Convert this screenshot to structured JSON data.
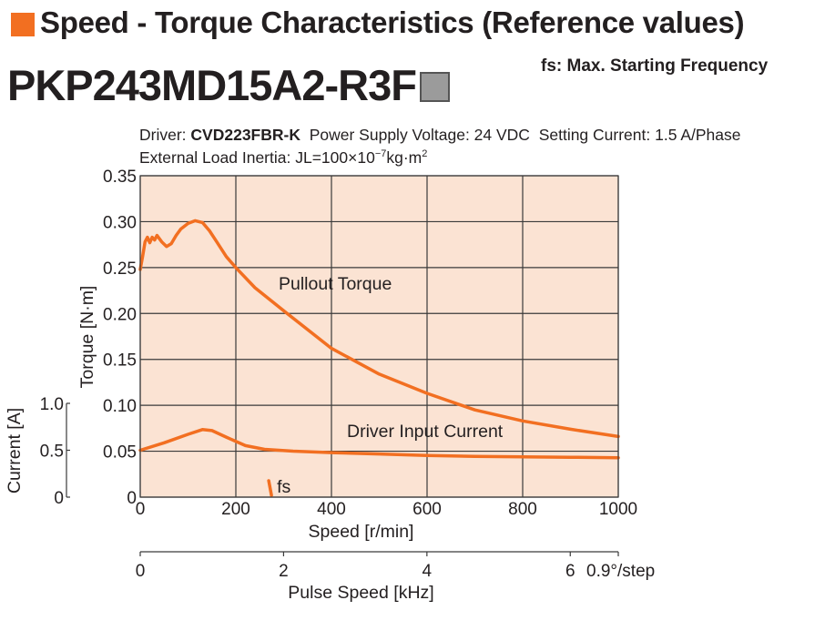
{
  "header": {
    "title": "Speed - Torque Characteristics (Reference values)",
    "fs_note": "fs: Max. Starting Frequency",
    "model": "PKP243MD15A2-R3F"
  },
  "conditions": {
    "driver_label": "Driver:",
    "driver_model": "CVD223FBR-K",
    "power_supply": "Power Supply Voltage: 24 VDC",
    "setting_current": "Setting Current: 1.5 A/Phase",
    "inertia_prefix": "External Load Inertia: JL=100×10",
    "inertia_exp": "−7",
    "inertia_unit": "kg·m",
    "inertia_unit_exp": "2"
  },
  "chart_data": {
    "type": "line",
    "ylabel": "Torque [N·m]",
    "y2label": "Current [A]",
    "xlabel": "Speed [r/min]",
    "x2label": "Pulse Speed [kHz]",
    "x2_step_label": "0.9°/step",
    "xlim": [
      0,
      1000
    ],
    "ylim": [
      0,
      0.35
    ],
    "y2lim": [
      0,
      1.0
    ],
    "x2lim": [
      0,
      6.67
    ],
    "grid": true,
    "background": "#fbe3d3",
    "line_color": "#f26f21",
    "xticks": [
      "0",
      "200",
      "400",
      "600",
      "800",
      "1000"
    ],
    "yticks": [
      "0",
      "0.05",
      "0.10",
      "0.15",
      "0.20",
      "0.25",
      "0.30",
      "0.35"
    ],
    "y2ticks": [
      "0",
      "0.5",
      "1.0"
    ],
    "x2ticks": [
      "0",
      "2",
      "4",
      "6"
    ],
    "series": [
      {
        "name": "Pullout Torque",
        "x": [
          0,
          5,
          10,
          15,
          20,
          25,
          30,
          35,
          45,
          55,
          65,
          75,
          85,
          100,
          115,
          130,
          145,
          160,
          180,
          200,
          240,
          300,
          400,
          500,
          600,
          700,
          800,
          900,
          1000
        ],
        "y": [
          0.248,
          0.262,
          0.278,
          0.283,
          0.277,
          0.283,
          0.28,
          0.285,
          0.278,
          0.273,
          0.276,
          0.285,
          0.292,
          0.298,
          0.301,
          0.299,
          0.29,
          0.278,
          0.262,
          0.25,
          0.228,
          0.203,
          0.162,
          0.134,
          0.113,
          0.095,
          0.083,
          0.074,
          0.066
        ]
      },
      {
        "name": "Driver Input Current",
        "x": [
          0,
          50,
          100,
          130,
          150,
          180,
          220,
          260,
          320,
          400,
          500,
          600,
          700,
          800,
          900,
          1000
        ],
        "y": [
          0.5,
          0.58,
          0.67,
          0.72,
          0.71,
          0.64,
          0.55,
          0.51,
          0.49,
          0.475,
          0.46,
          0.445,
          0.435,
          0.43,
          0.425,
          0.42
        ]
      }
    ],
    "annotations": {
      "fs_label": "fs",
      "fs_speed": 265
    }
  }
}
